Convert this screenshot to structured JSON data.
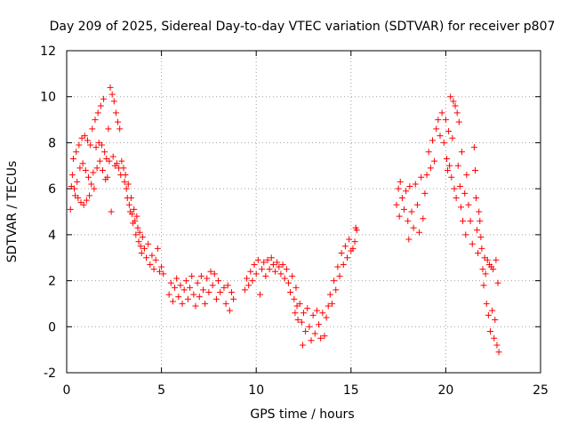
{
  "chart_data": {
    "type": "scatter",
    "title": "Day 209 of 2025, Sidereal Day-to-day VTEC variation (SDTVAR) for receiver p807",
    "xlabel": "GPS time / hours",
    "ylabel": "SDTVAR / TECUs",
    "xlim": [
      0,
      25
    ],
    "ylim": [
      -2,
      12
    ],
    "xticks": [
      0,
      5,
      10,
      15,
      20,
      25
    ],
    "yticks": [
      -2,
      0,
      2,
      4,
      6,
      8,
      10,
      12
    ],
    "grid": true,
    "marker": "+",
    "color": "#ff0000",
    "series": [
      {
        "name": "SDTVAR",
        "points": [
          [
            0.2,
            5.1
          ],
          [
            0.25,
            6.1
          ],
          [
            0.3,
            6.6
          ],
          [
            0.35,
            7.3
          ],
          [
            0.4,
            6.0
          ],
          [
            0.45,
            5.7
          ],
          [
            0.5,
            7.6
          ],
          [
            0.55,
            6.3
          ],
          [
            0.6,
            5.6
          ],
          [
            0.65,
            7.9
          ],
          [
            0.7,
            6.9
          ],
          [
            0.75,
            5.4
          ],
          [
            0.8,
            8.2
          ],
          [
            0.85,
            7.1
          ],
          [
            0.9,
            5.3
          ],
          [
            0.95,
            8.3
          ],
          [
            1.0,
            6.8
          ],
          [
            1.05,
            5.5
          ],
          [
            1.1,
            8.1
          ],
          [
            1.15,
            6.5
          ],
          [
            1.2,
            5.7
          ],
          [
            1.25,
            7.9
          ],
          [
            1.3,
            6.2
          ],
          [
            1.35,
            8.6
          ],
          [
            1.4,
            6.7
          ],
          [
            1.45,
            6.0
          ],
          [
            1.5,
            9.0
          ],
          [
            1.55,
            7.8
          ],
          [
            1.6,
            6.9
          ],
          [
            1.65,
            9.3
          ],
          [
            1.7,
            8.0
          ],
          [
            1.75,
            7.2
          ],
          [
            1.8,
            9.6
          ],
          [
            1.85,
            7.9
          ],
          [
            1.9,
            6.8
          ],
          [
            1.95,
            9.9
          ],
          [
            2.0,
            7.6
          ],
          [
            2.05,
            6.4
          ],
          [
            2.1,
            7.3
          ],
          [
            2.15,
            6.5
          ],
          [
            2.2,
            8.6
          ],
          [
            2.25,
            7.2
          ],
          [
            2.3,
            10.4
          ],
          [
            2.35,
            5.0
          ],
          [
            2.4,
            10.1
          ],
          [
            2.45,
            7.4
          ],
          [
            2.5,
            9.8
          ],
          [
            2.55,
            7.0
          ],
          [
            2.6,
            9.3
          ],
          [
            2.65,
            7.1
          ],
          [
            2.7,
            8.9
          ],
          [
            2.75,
            6.9
          ],
          [
            2.8,
            8.6
          ],
          [
            2.85,
            6.6
          ],
          [
            2.9,
            7.2
          ],
          [
            3.0,
            6.9
          ],
          [
            3.05,
            6.3
          ],
          [
            3.1,
            6.6
          ],
          [
            3.15,
            6.0
          ],
          [
            3.2,
            5.6
          ],
          [
            3.25,
            6.2
          ],
          [
            3.3,
            5.3
          ],
          [
            3.35,
            5.0
          ],
          [
            3.4,
            5.6
          ],
          [
            3.45,
            4.9
          ],
          [
            3.5,
            4.5
          ],
          [
            3.55,
            5.1
          ],
          [
            3.6,
            4.6
          ],
          [
            3.65,
            4.0
          ],
          [
            3.7,
            4.8
          ],
          [
            3.75,
            4.3
          ],
          [
            3.8,
            3.7
          ],
          [
            3.85,
            4.1
          ],
          [
            3.9,
            3.5
          ],
          [
            3.95,
            3.2
          ],
          [
            4.0,
            3.9
          ],
          [
            4.1,
            3.4
          ],
          [
            4.2,
            3.0
          ],
          [
            4.3,
            3.6
          ],
          [
            4.4,
            2.7
          ],
          [
            4.5,
            3.1
          ],
          [
            4.6,
            2.5
          ],
          [
            4.7,
            2.9
          ],
          [
            4.8,
            3.4
          ],
          [
            4.9,
            2.4
          ],
          [
            5.0,
            2.6
          ],
          [
            5.1,
            2.3
          ],
          [
            5.4,
            1.4
          ],
          [
            5.5,
            1.9
          ],
          [
            5.6,
            1.1
          ],
          [
            5.7,
            1.7
          ],
          [
            5.8,
            2.1
          ],
          [
            5.9,
            1.3
          ],
          [
            6.0,
            1.8
          ],
          [
            6.1,
            1.0
          ],
          [
            6.2,
            1.6
          ],
          [
            6.3,
            2.0
          ],
          [
            6.4,
            1.2
          ],
          [
            6.5,
            1.7
          ],
          [
            6.6,
            2.2
          ],
          [
            6.7,
            1.4
          ],
          [
            6.8,
            0.9
          ],
          [
            6.9,
            1.9
          ],
          [
            7.0,
            1.3
          ],
          [
            7.1,
            2.2
          ],
          [
            7.2,
            1.6
          ],
          [
            7.3,
            1.0
          ],
          [
            7.4,
            2.1
          ],
          [
            7.5,
            1.5
          ],
          [
            7.6,
            2.4
          ],
          [
            7.7,
            1.8
          ],
          [
            7.8,
            2.3
          ],
          [
            7.9,
            1.2
          ],
          [
            8.0,
            2.0
          ],
          [
            8.1,
            1.5
          ],
          [
            8.3,
            1.7
          ],
          [
            8.4,
            1.0
          ],
          [
            8.5,
            1.8
          ],
          [
            8.6,
            0.7
          ],
          [
            8.7,
            1.5
          ],
          [
            8.8,
            1.2
          ],
          [
            9.4,
            1.6
          ],
          [
            9.5,
            2.1
          ],
          [
            9.6,
            1.8
          ],
          [
            9.7,
            2.4
          ],
          [
            9.8,
            2.0
          ],
          [
            9.9,
            2.7
          ],
          [
            10.0,
            2.3
          ],
          [
            10.1,
            2.9
          ],
          [
            10.2,
            1.4
          ],
          [
            10.3,
            2.5
          ],
          [
            10.4,
            2.8
          ],
          [
            10.5,
            2.2
          ],
          [
            10.6,
            2.9
          ],
          [
            10.7,
            2.5
          ],
          [
            10.8,
            3.0
          ],
          [
            10.9,
            2.7
          ],
          [
            11.0,
            2.4
          ],
          [
            11.1,
            2.8
          ],
          [
            11.2,
            2.6
          ],
          [
            11.3,
            2.3
          ],
          [
            11.4,
            2.7
          ],
          [
            11.5,
            2.1
          ],
          [
            11.6,
            2.5
          ],
          [
            11.7,
            1.9
          ],
          [
            11.8,
            1.5
          ],
          [
            11.9,
            2.2
          ],
          [
            12.0,
            1.2
          ],
          [
            12.05,
            0.6
          ],
          [
            12.1,
            1.7
          ],
          [
            12.15,
            0.9
          ],
          [
            12.2,
            0.3
          ],
          [
            12.3,
            1.0
          ],
          [
            12.4,
            0.2
          ],
          [
            12.45,
            -0.8
          ],
          [
            12.5,
            0.6
          ],
          [
            12.6,
            -0.2
          ],
          [
            12.7,
            0.8
          ],
          [
            12.8,
            0.0
          ],
          [
            12.9,
            -0.6
          ],
          [
            13.0,
            0.5
          ],
          [
            13.1,
            -0.3
          ],
          [
            13.2,
            0.7
          ],
          [
            13.3,
            0.1
          ],
          [
            13.4,
            -0.5
          ],
          [
            13.5,
            0.6
          ],
          [
            13.6,
            -0.4
          ],
          [
            13.7,
            0.4
          ],
          [
            13.8,
            0.9
          ],
          [
            13.9,
            1.4
          ],
          [
            14.0,
            1.0
          ],
          [
            14.1,
            2.0
          ],
          [
            14.2,
            1.6
          ],
          [
            14.3,
            2.6
          ],
          [
            14.4,
            2.2
          ],
          [
            14.5,
            3.2
          ],
          [
            14.6,
            2.7
          ],
          [
            14.7,
            3.5
          ],
          [
            14.8,
            3.0
          ],
          [
            14.9,
            3.8
          ],
          [
            15.0,
            3.3
          ],
          [
            15.1,
            3.4
          ],
          [
            15.2,
            3.7
          ],
          [
            15.25,
            4.3
          ],
          [
            15.3,
            4.2
          ],
          [
            17.4,
            5.3
          ],
          [
            17.5,
            6.0
          ],
          [
            17.55,
            4.8
          ],
          [
            17.6,
            6.3
          ],
          [
            17.7,
            5.6
          ],
          [
            17.8,
            5.1
          ],
          [
            17.9,
            5.9
          ],
          [
            18.0,
            4.6
          ],
          [
            18.05,
            3.8
          ],
          [
            18.1,
            6.1
          ],
          [
            18.2,
            5.0
          ],
          [
            18.3,
            4.3
          ],
          [
            18.4,
            6.2
          ],
          [
            18.5,
            5.3
          ],
          [
            18.6,
            4.1
          ],
          [
            18.7,
            6.5
          ],
          [
            18.8,
            4.7
          ],
          [
            18.9,
            5.8
          ],
          [
            19.0,
            6.6
          ],
          [
            19.1,
            7.6
          ],
          [
            19.2,
            6.9
          ],
          [
            19.3,
            8.1
          ],
          [
            19.4,
            7.2
          ],
          [
            19.5,
            8.6
          ],
          [
            19.6,
            9.0
          ],
          [
            19.7,
            8.3
          ],
          [
            19.8,
            9.3
          ],
          [
            19.9,
            8.0
          ],
          [
            20.0,
            9.0
          ],
          [
            20.05,
            7.3
          ],
          [
            20.1,
            6.8
          ],
          [
            20.15,
            8.5
          ],
          [
            20.2,
            7.0
          ],
          [
            20.25,
            10.0
          ],
          [
            20.3,
            6.5
          ],
          [
            20.35,
            8.2
          ],
          [
            20.4,
            9.8
          ],
          [
            20.45,
            6.0
          ],
          [
            20.5,
            9.6
          ],
          [
            20.55,
            5.6
          ],
          [
            20.6,
            9.3
          ],
          [
            20.65,
            7.0
          ],
          [
            20.7,
            8.9
          ],
          [
            20.75,
            6.1
          ],
          [
            20.8,
            5.2
          ],
          [
            20.85,
            7.6
          ],
          [
            20.9,
            4.6
          ],
          [
            21.0,
            5.8
          ],
          [
            21.05,
            4.0
          ],
          [
            21.1,
            6.6
          ],
          [
            21.2,
            5.3
          ],
          [
            21.3,
            4.6
          ],
          [
            21.4,
            3.6
          ],
          [
            21.5,
            7.8
          ],
          [
            21.55,
            6.8
          ],
          [
            21.6,
            5.6
          ],
          [
            21.65,
            4.2
          ],
          [
            21.7,
            3.2
          ],
          [
            21.75,
            5.0
          ],
          [
            21.8,
            4.6
          ],
          [
            21.85,
            3.9
          ],
          [
            21.9,
            3.4
          ],
          [
            21.95,
            2.5
          ],
          [
            22.0,
            1.8
          ],
          [
            22.05,
            3.0
          ],
          [
            22.1,
            2.3
          ],
          [
            22.15,
            1.0
          ],
          [
            22.2,
            2.9
          ],
          [
            22.25,
            0.5
          ],
          [
            22.3,
            2.7
          ],
          [
            22.35,
            -0.2
          ],
          [
            22.4,
            2.6
          ],
          [
            22.45,
            0.7
          ],
          [
            22.5,
            2.5
          ],
          [
            22.55,
            -0.5
          ],
          [
            22.6,
            0.3
          ],
          [
            22.65,
            2.9
          ],
          [
            22.7,
            -0.8
          ],
          [
            22.75,
            1.9
          ],
          [
            22.8,
            -1.1
          ]
        ]
      }
    ]
  }
}
